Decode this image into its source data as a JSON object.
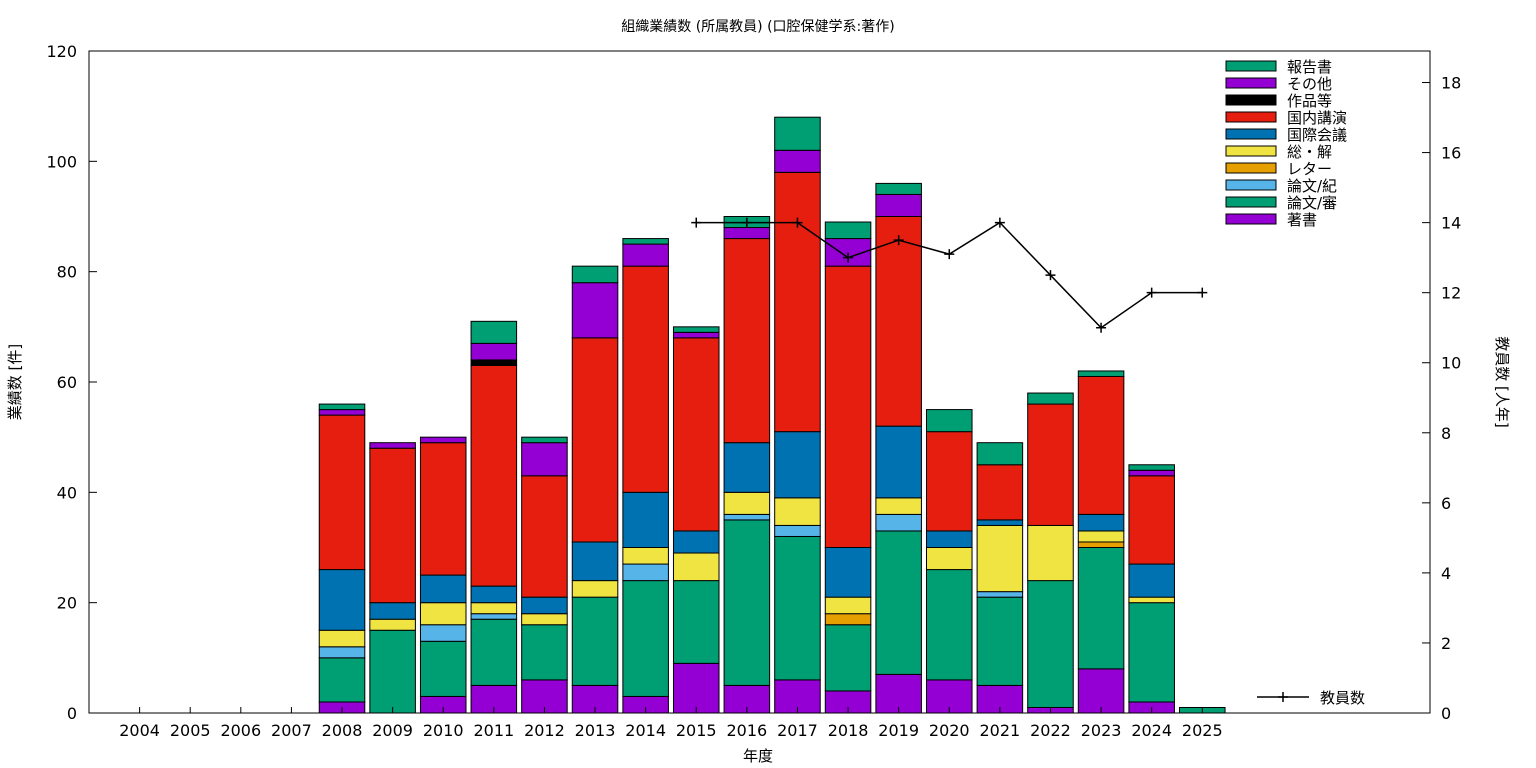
{
  "chart_data": {
    "type": "bar",
    "stacked": true,
    "title": "組織業績数 (所属教員) (口腔保健学系:著作)",
    "xlabel": "年度",
    "ylabel": "業績数 [件]",
    "y2label": "教員数 [人年]",
    "ylim": [
      0,
      120
    ],
    "y2lim": [
      0,
      18.9
    ],
    "yticks": [
      0,
      20,
      40,
      60,
      80,
      100,
      120
    ],
    "y2ticks": [
      0,
      2,
      4,
      6,
      8,
      10,
      12,
      14,
      16,
      18
    ],
    "grid": false,
    "legend_position": "top-right",
    "categories": [
      "2004",
      "2005",
      "2006",
      "2007",
      "2008",
      "2009",
      "2010",
      "2011",
      "2012",
      "2013",
      "2014",
      "2015",
      "2016",
      "2017",
      "2018",
      "2019",
      "2020",
      "2021",
      "2022",
      "2023",
      "2024",
      "2025"
    ],
    "series": [
      {
        "name": "著書",
        "color": "#9400d3",
        "values": [
          0,
          0,
          0,
          0,
          2,
          0,
          3,
          5,
          6,
          5,
          3,
          9,
          5,
          6,
          4,
          7,
          6,
          5,
          1,
          8,
          2,
          0
        ]
      },
      {
        "name": "論文/審",
        "color": "#009e73",
        "values": [
          0,
          0,
          0,
          0,
          8,
          15,
          10,
          12,
          10,
          16,
          21,
          15,
          30,
          26,
          12,
          26,
          20,
          16,
          23,
          22,
          18,
          1
        ]
      },
      {
        "name": "論文/紀",
        "color": "#56b4e9",
        "values": [
          0,
          0,
          0,
          0,
          2,
          0,
          3,
          1,
          0,
          0,
          3,
          0,
          1,
          2,
          0,
          3,
          0,
          1,
          0,
          0,
          0,
          0
        ]
      },
      {
        "name": "レター",
        "color": "#e69f00",
        "values": [
          0,
          0,
          0,
          0,
          0,
          0,
          0,
          0,
          0,
          0,
          0,
          0,
          0,
          0,
          2,
          0,
          0,
          0,
          0,
          1,
          0,
          0
        ]
      },
      {
        "name": "総・解",
        "color": "#f0e442",
        "values": [
          0,
          0,
          0,
          0,
          3,
          2,
          4,
          2,
          2,
          3,
          3,
          5,
          4,
          5,
          3,
          3,
          4,
          12,
          10,
          2,
          1,
          0
        ]
      },
      {
        "name": "国際会議",
        "color": "#0072b2",
        "values": [
          0,
          0,
          0,
          0,
          11,
          3,
          5,
          3,
          3,
          7,
          10,
          4,
          9,
          12,
          9,
          13,
          3,
          1,
          0,
          3,
          6,
          0
        ]
      },
      {
        "name": "国内講演",
        "color": "#e51e10",
        "values": [
          0,
          0,
          0,
          0,
          28,
          28,
          24,
          40,
          22,
          37,
          41,
          35,
          37,
          47,
          51,
          38,
          18,
          10,
          22,
          25,
          16,
          0
        ]
      },
      {
        "name": "作品等",
        "color": "#000000",
        "values": [
          0,
          0,
          0,
          0,
          0,
          0,
          0,
          1,
          0,
          0,
          0,
          0,
          0,
          0,
          0,
          0,
          0,
          0,
          0,
          0,
          0,
          0
        ]
      },
      {
        "name": "その他",
        "color": "#9400d3",
        "values": [
          0,
          0,
          0,
          0,
          1,
          1,
          1,
          3,
          6,
          10,
          4,
          1,
          2,
          4,
          5,
          4,
          0,
          0,
          0,
          0,
          1,
          0
        ]
      },
      {
        "name": "報告書",
        "color": "#009e73",
        "values": [
          0,
          0,
          0,
          0,
          1,
          0,
          0,
          4,
          1,
          3,
          1,
          1,
          2,
          6,
          3,
          2,
          4,
          4,
          2,
          1,
          1,
          0
        ]
      }
    ],
    "line_series": {
      "name": "教員数",
      "color": "#000000",
      "axis": "y2",
      "x": [
        "2015",
        "2016",
        "2017",
        "2018",
        "2019",
        "2020",
        "2021",
        "2022",
        "2023",
        "2024",
        "2025"
      ],
      "values": [
        14,
        14,
        14,
        13,
        13.5,
        13.1,
        14,
        12.5,
        11,
        12,
        12
      ]
    }
  }
}
